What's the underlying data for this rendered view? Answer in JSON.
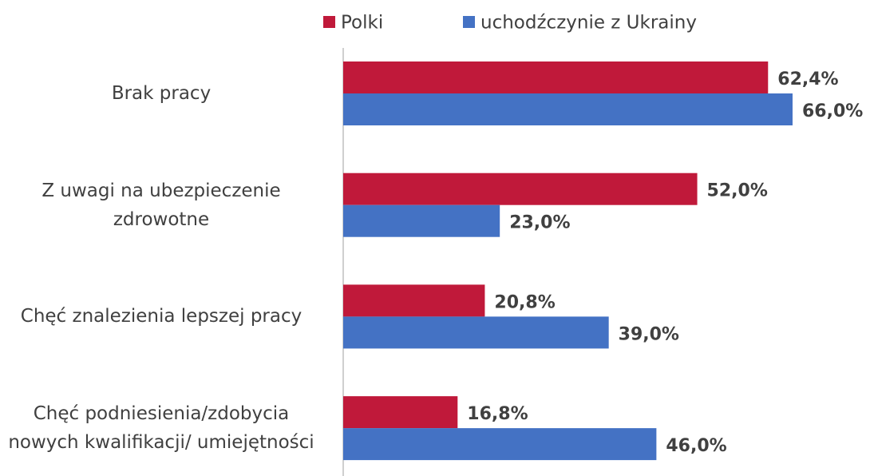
{
  "chart_data": {
    "type": "hbar",
    "categories": [
      "Brak pracy",
      "Z uwagi na ubezpieczenie zdrowotne",
      "Chęć znalezienia lepszej pracy",
      "Chęć podniesienia/zdobycia nowych kwalifikacji/ umiejętności"
    ],
    "series": [
      {
        "name": "Polki",
        "color": "#c0193a",
        "values": [
          62.4,
          52.0,
          20.8,
          16.8
        ],
        "value_labels": [
          "62,4%",
          "52,0%",
          "20,8%",
          "16,8%"
        ]
      },
      {
        "name": "uchodźczynie z Ukrainy",
        "color": "#4472c4",
        "values": [
          66.0,
          23.0,
          39.0,
          46.0
        ],
        "value_labels": [
          "66,0%",
          "23,0%",
          "39,0%",
          "46,0%"
        ]
      }
    ],
    "legend": "top"
  }
}
